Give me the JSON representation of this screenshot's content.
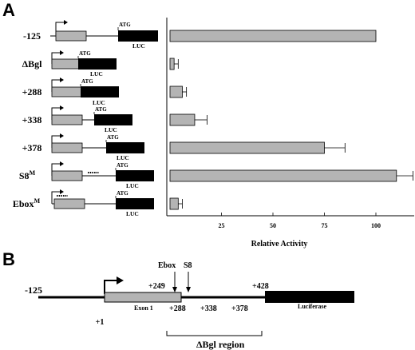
{
  "panel_a": {
    "letter": "A"
  },
  "panel_b": {
    "letter": "B",
    "left_pos": "-125",
    "tss": "+1",
    "ebox": "Ebox",
    "s8": "S8",
    "p249": "+249",
    "p428": "+428",
    "p288": "+288",
    "p338": "+338",
    "p378": "+378",
    "exon": "Exon 1",
    "luciferase": "Luciferase",
    "region": "ΔBgl region"
  },
  "constructs": [
    {
      "label": "-125"
    },
    {
      "label": "ΔBgl"
    },
    {
      "label": "+288"
    },
    {
      "label": "+338"
    },
    {
      "label": "+378"
    },
    {
      "label": "S8",
      "sup": "M"
    },
    {
      "label": "Ebox",
      "sup": "M"
    }
  ],
  "atg_label": "ATG",
  "luc_label": "LUC",
  "chart_data": {
    "type": "bar",
    "orientation": "horizontal",
    "categories": [
      "-125",
      "ΔBgl",
      "+288",
      "+338",
      "+378",
      "S8M",
      "EboxM"
    ],
    "values": [
      100,
      2,
      6,
      12,
      75,
      110,
      4
    ],
    "errors": [
      0,
      2,
      2,
      6,
      10,
      8,
      2
    ],
    "xlabel": "Relative Activity",
    "xticks": [
      "25",
      "50",
      "75",
      "100"
    ],
    "xlim": [
      0,
      120
    ],
    "colors": {
      "bar": "#b4b4b4",
      "edge": "#000000"
    }
  }
}
